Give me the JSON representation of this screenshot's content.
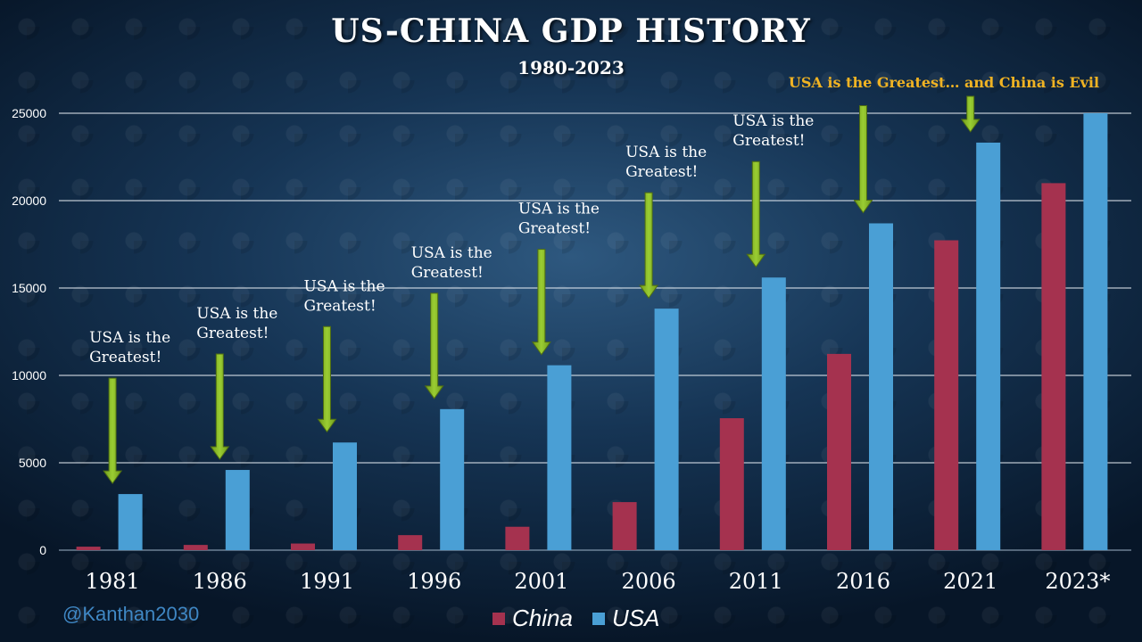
{
  "title": "US-CHINA GDP HISTORY",
  "subtitle": "1980-2023",
  "watermark": "@Kanthan2030",
  "chart_data": {
    "type": "bar",
    "categories": [
      "1981",
      "1986",
      "1991",
      "1996",
      "2001",
      "2006",
      "2011",
      "2016",
      "2021",
      "2023*"
    ],
    "series": [
      {
        "name": "China",
        "color": "#a5324f",
        "values": [
          200,
          300,
          380,
          860,
          1340,
          2750,
          7550,
          11230,
          17730,
          21000
        ]
      },
      {
        "name": "USA",
        "color": "#4a9fd5",
        "values": [
          3210,
          4590,
          6160,
          8070,
          10580,
          13820,
          15600,
          18700,
          23320,
          26000
        ]
      }
    ],
    "ylim": [
      0,
      25000
    ],
    "yticks": [
      0,
      5000,
      10000,
      15000,
      20000,
      25000
    ],
    "grid": true,
    "legend": "bottom",
    "annotations": [
      {
        "category": "1981",
        "lines": [
          "USA is the",
          "Greatest!"
        ]
      },
      {
        "category": "1986",
        "lines": [
          "USA is the",
          "Greatest!"
        ]
      },
      {
        "category": "1991",
        "lines": [
          "USA is the",
          "Greatest!"
        ]
      },
      {
        "category": "1996",
        "lines": [
          "USA is the",
          "Greatest!"
        ]
      },
      {
        "category": "2001",
        "lines": [
          "USA is the",
          "Greatest!"
        ]
      },
      {
        "category": "2006",
        "lines": [
          "USA is the",
          "Greatest!"
        ]
      },
      {
        "category": "2011",
        "lines": [
          "USA is the",
          "Greatest!"
        ]
      },
      {
        "category": "2016",
        "lines": []
      },
      {
        "category": "2021",
        "lines": []
      }
    ],
    "headline_annotation": "USA is the Greatest… and China is Evil",
    "annotation_color": "#f0b323",
    "arrow_color": "#9acd32"
  }
}
